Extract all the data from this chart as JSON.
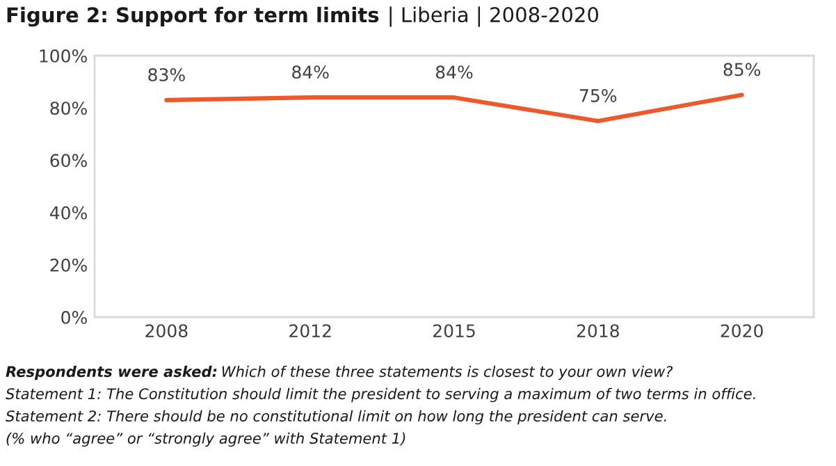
{
  "chart_data": {
    "type": "line",
    "title": "Figure 2: Support for term limits",
    "subtitle": "| Liberia | 2008-2020",
    "categories": [
      "2008",
      "2012",
      "2015",
      "2018",
      "2020"
    ],
    "series": [
      {
        "color": "#ec5a2c",
        "values": [
          83,
          84,
          84,
          75,
          85
        ]
      }
    ],
    "value_labels": [
      "83%",
      "84%",
      "84%",
      "75%",
      "85%"
    ],
    "ylim": [
      0,
      100
    ],
    "yticks": [
      {
        "value": 0,
        "label": "0%"
      },
      {
        "value": 20,
        "label": "20%"
      },
      {
        "value": 40,
        "label": "40%"
      },
      {
        "value": 60,
        "label": "60%"
      },
      {
        "value": 80,
        "label": "80%"
      },
      {
        "value": 100,
        "label": "100%"
      }
    ],
    "grid": false,
    "legend": false,
    "marker": "none",
    "line_style": "solid",
    "annotations": [
      "Respondents were asked:",
      "Which of these three statements is closest to your own view?",
      "Statement 1: The Constitution should limit the president to serving a maximum of two terms in office.",
      "Statement 2: There should be no constitutional limit on how long the president can serve.",
      "(% who “agree” or “strongly agree” with Statement 1)"
    ]
  }
}
